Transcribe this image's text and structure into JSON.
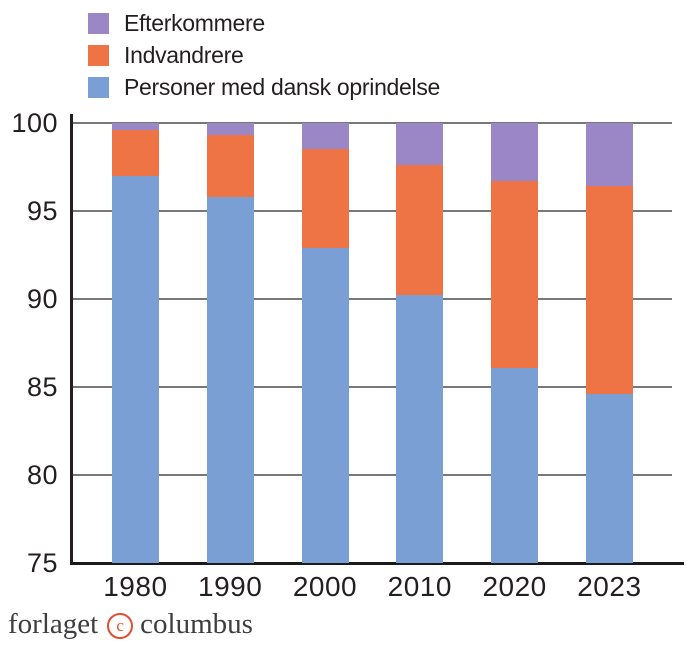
{
  "chart_data": {
    "type": "bar",
    "stacked": true,
    "title": "",
    "xlabel": "",
    "ylabel": "",
    "unit": "percent",
    "categories": [
      "1980",
      "1990",
      "2000",
      "2010",
      "2020",
      "2023"
    ],
    "series": [
      {
        "name": "Personer med dansk oprindelse",
        "color": "#7A9FD4",
        "values": [
          97.0,
          95.8,
          92.9,
          90.2,
          86.1,
          84.6
        ]
      },
      {
        "name": "Indvandrere",
        "color": "#EE7446",
        "values": [
          2.6,
          3.5,
          5.6,
          7.4,
          10.6,
          11.8
        ]
      },
      {
        "name": "Efterkommere",
        "color": "#9B87C5",
        "values": [
          0.4,
          0.7,
          1.5,
          2.4,
          3.3,
          3.6
        ]
      }
    ],
    "ylim": [
      75,
      100
    ],
    "yticks": [
      100,
      95,
      90,
      85,
      80,
      75
    ],
    "grid": true,
    "legend_position": "top-left",
    "legend_order": "reversed",
    "colors": {
      "axis": "#231F20",
      "baseline": "#1A1A1A",
      "gridline": "#77787B",
      "text": "#231F20"
    }
  },
  "footer": {
    "prefix": "forlaget",
    "copyright_letter": "c",
    "suffix": "columbus",
    "accent_color": "#DC4F33"
  }
}
